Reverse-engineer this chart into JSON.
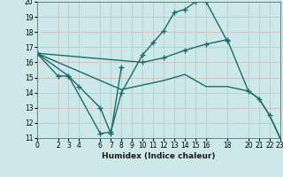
{
  "xlabel": "Humidex (Indice chaleur)",
  "background_color": "#cce8e8",
  "grid_color": "#b0d4d4",
  "line_color": "#1a6b6b",
  "xlim": [
    0,
    23
  ],
  "ylim": [
    11,
    20
  ],
  "xticks": [
    0,
    2,
    3,
    4,
    6,
    7,
    8,
    9,
    10,
    11,
    12,
    13,
    14,
    15,
    16,
    18,
    20,
    21,
    22,
    23
  ],
  "yticks": [
    11,
    12,
    13,
    14,
    15,
    16,
    17,
    18,
    19,
    20
  ],
  "line1_x": [
    0,
    2,
    3,
    6,
    7,
    8,
    10,
    11,
    12,
    13,
    14,
    15,
    16,
    18
  ],
  "line1_y": [
    16.6,
    15.1,
    15.1,
    11.3,
    11.4,
    14.0,
    16.5,
    17.3,
    18.1,
    19.3,
    19.5,
    20.0,
    20.0,
    17.4
  ],
  "line2_x": [
    0,
    3,
    4,
    6,
    7,
    8
  ],
  "line2_y": [
    16.6,
    15.1,
    14.4,
    13.0,
    11.3,
    15.7
  ],
  "line3_x": [
    0,
    10,
    12,
    14,
    16,
    18,
    20,
    21,
    22,
    23
  ],
  "line3_y": [
    16.6,
    16.0,
    16.3,
    16.8,
    17.2,
    17.5,
    14.1,
    13.6,
    12.5,
    11.0
  ],
  "line4_x": [
    0,
    8,
    10,
    12,
    14,
    16,
    18,
    20,
    21,
    22,
    23
  ],
  "line4_y": [
    16.6,
    14.2,
    14.5,
    14.8,
    15.2,
    14.4,
    14.4,
    14.1,
    13.6,
    12.5,
    11.0
  ]
}
